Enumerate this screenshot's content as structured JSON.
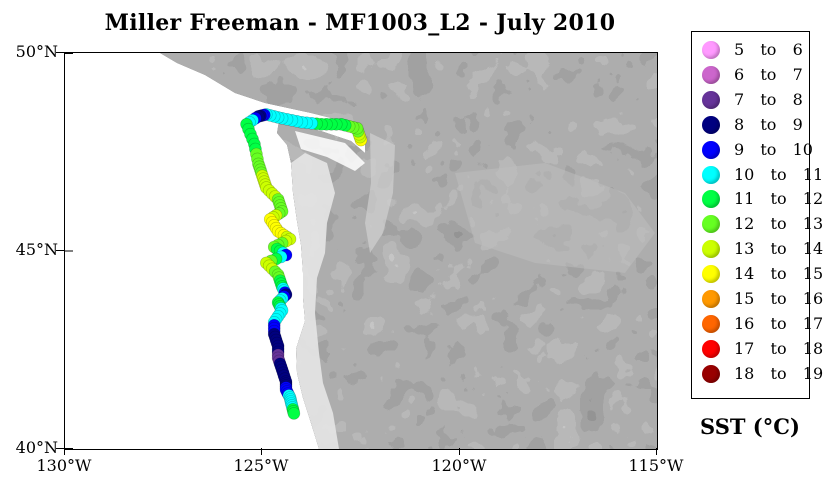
{
  "title": "Miller Freeman - MF1003_L2 - July 2010",
  "axes": {
    "y_ticks": [
      "50°N",
      "45°N",
      "40°N"
    ],
    "x_ticks": [
      "130°W",
      "125°W",
      "120°W",
      "115°W"
    ],
    "lat_range": [
      40,
      50
    ],
    "lon_range": [
      -130,
      -115
    ]
  },
  "legend": {
    "title": "SST (°C)",
    "items": [
      {
        "label": "5  to  6",
        "color": "#ff99ff"
      },
      {
        "label": "6  to  7",
        "color": "#cc66cc"
      },
      {
        "label": "7  to  8",
        "color": "#663399"
      },
      {
        "label": "8  to  9",
        "color": "#000080"
      },
      {
        "label": "9  to  10",
        "color": "#0000ff"
      },
      {
        "label": "10  to  11",
        "color": "#00ffff"
      },
      {
        "label": "11  to  12",
        "color": "#00ff44"
      },
      {
        "label": "12  to  13",
        "color": "#66ff22"
      },
      {
        "label": "13  to  14",
        "color": "#ccff00"
      },
      {
        "label": "14  to  15",
        "color": "#ffff00"
      },
      {
        "label": "15  to  16",
        "color": "#ff9900"
      },
      {
        "label": "16  to  17",
        "color": "#ff6600"
      },
      {
        "label": "17  to  18",
        "color": "#ff0000"
      },
      {
        "label": "18  to  19",
        "color": "#990000"
      }
    ]
  },
  "colors": {
    "ocean": "#ffffff",
    "land_base": "#6f6f6f",
    "land_light": "#d8d8d8",
    "land_dark": "#3a3a3a"
  },
  "track": [
    {
      "lon": -122.5,
      "lat": 47.8,
      "sst": 14.3
    },
    {
      "lon": -122.6,
      "lat": 48.1,
      "sst": 12.5
    },
    {
      "lon": -123.0,
      "lat": 48.2,
      "sst": 11.5
    },
    {
      "lon": -123.5,
      "lat": 48.2,
      "sst": 11.3
    },
    {
      "lon": -124.0,
      "lat": 48.25,
      "sst": 10.5
    },
    {
      "lon": -124.5,
      "lat": 48.35,
      "sst": 10.3
    },
    {
      "lon": -124.9,
      "lat": 48.45,
      "sst": 10.2
    },
    {
      "lon": -125.1,
      "lat": 48.4,
      "sst": 8.5
    },
    {
      "lon": -125.4,
      "lat": 48.2,
      "sst": 11.5
    },
    {
      "lon": -125.2,
      "lat": 47.7,
      "sst": 11.8
    },
    {
      "lon": -125.1,
      "lat": 47.2,
      "sst": 12.3
    },
    {
      "lon": -125.0,
      "lat": 46.9,
      "sst": 13.2
    },
    {
      "lon": -124.9,
      "lat": 46.6,
      "sst": 13.7
    },
    {
      "lon": -124.6,
      "lat": 46.3,
      "sst": 12.8
    },
    {
      "lon": -124.5,
      "lat": 46.0,
      "sst": 12.2
    },
    {
      "lon": -124.8,
      "lat": 45.8,
      "sst": 14.2
    },
    {
      "lon": -124.6,
      "lat": 45.5,
      "sst": 14.6
    },
    {
      "lon": -124.3,
      "lat": 45.3,
      "sst": 13.4
    },
    {
      "lon": -124.7,
      "lat": 45.1,
      "sst": 12.4
    },
    {
      "lon": -124.4,
      "lat": 44.9,
      "sst": 9.6
    },
    {
      "lon": -124.9,
      "lat": 44.7,
      "sst": 13.8
    },
    {
      "lon": -124.6,
      "lat": 44.4,
      "sst": 12.2
    },
    {
      "lon": -124.5,
      "lat": 44.1,
      "sst": 11.6
    },
    {
      "lon": -124.4,
      "lat": 43.9,
      "sst": 8.7
    },
    {
      "lon": -124.6,
      "lat": 43.7,
      "sst": 11.4
    },
    {
      "lon": -124.5,
      "lat": 43.5,
      "sst": 10.6
    },
    {
      "lon": -124.7,
      "lat": 43.2,
      "sst": 10.3
    },
    {
      "lon": -124.7,
      "lat": 42.9,
      "sst": 8.6
    },
    {
      "lon": -124.6,
      "lat": 42.6,
      "sst": 8.4
    },
    {
      "lon": -124.6,
      "lat": 42.3,
      "sst": 7.8
    },
    {
      "lon": -124.5,
      "lat": 42.0,
      "sst": 8.5
    },
    {
      "lon": -124.4,
      "lat": 41.7,
      "sst": 8.6
    },
    {
      "lon": -124.4,
      "lat": 41.5,
      "sst": 9.3
    },
    {
      "lon": -124.3,
      "lat": 41.3,
      "sst": 10.4
    },
    {
      "lon": -124.25,
      "lat": 41.1,
      "sst": 10.7
    },
    {
      "lon": -124.2,
      "lat": 40.9,
      "sst": 11.5
    }
  ]
}
